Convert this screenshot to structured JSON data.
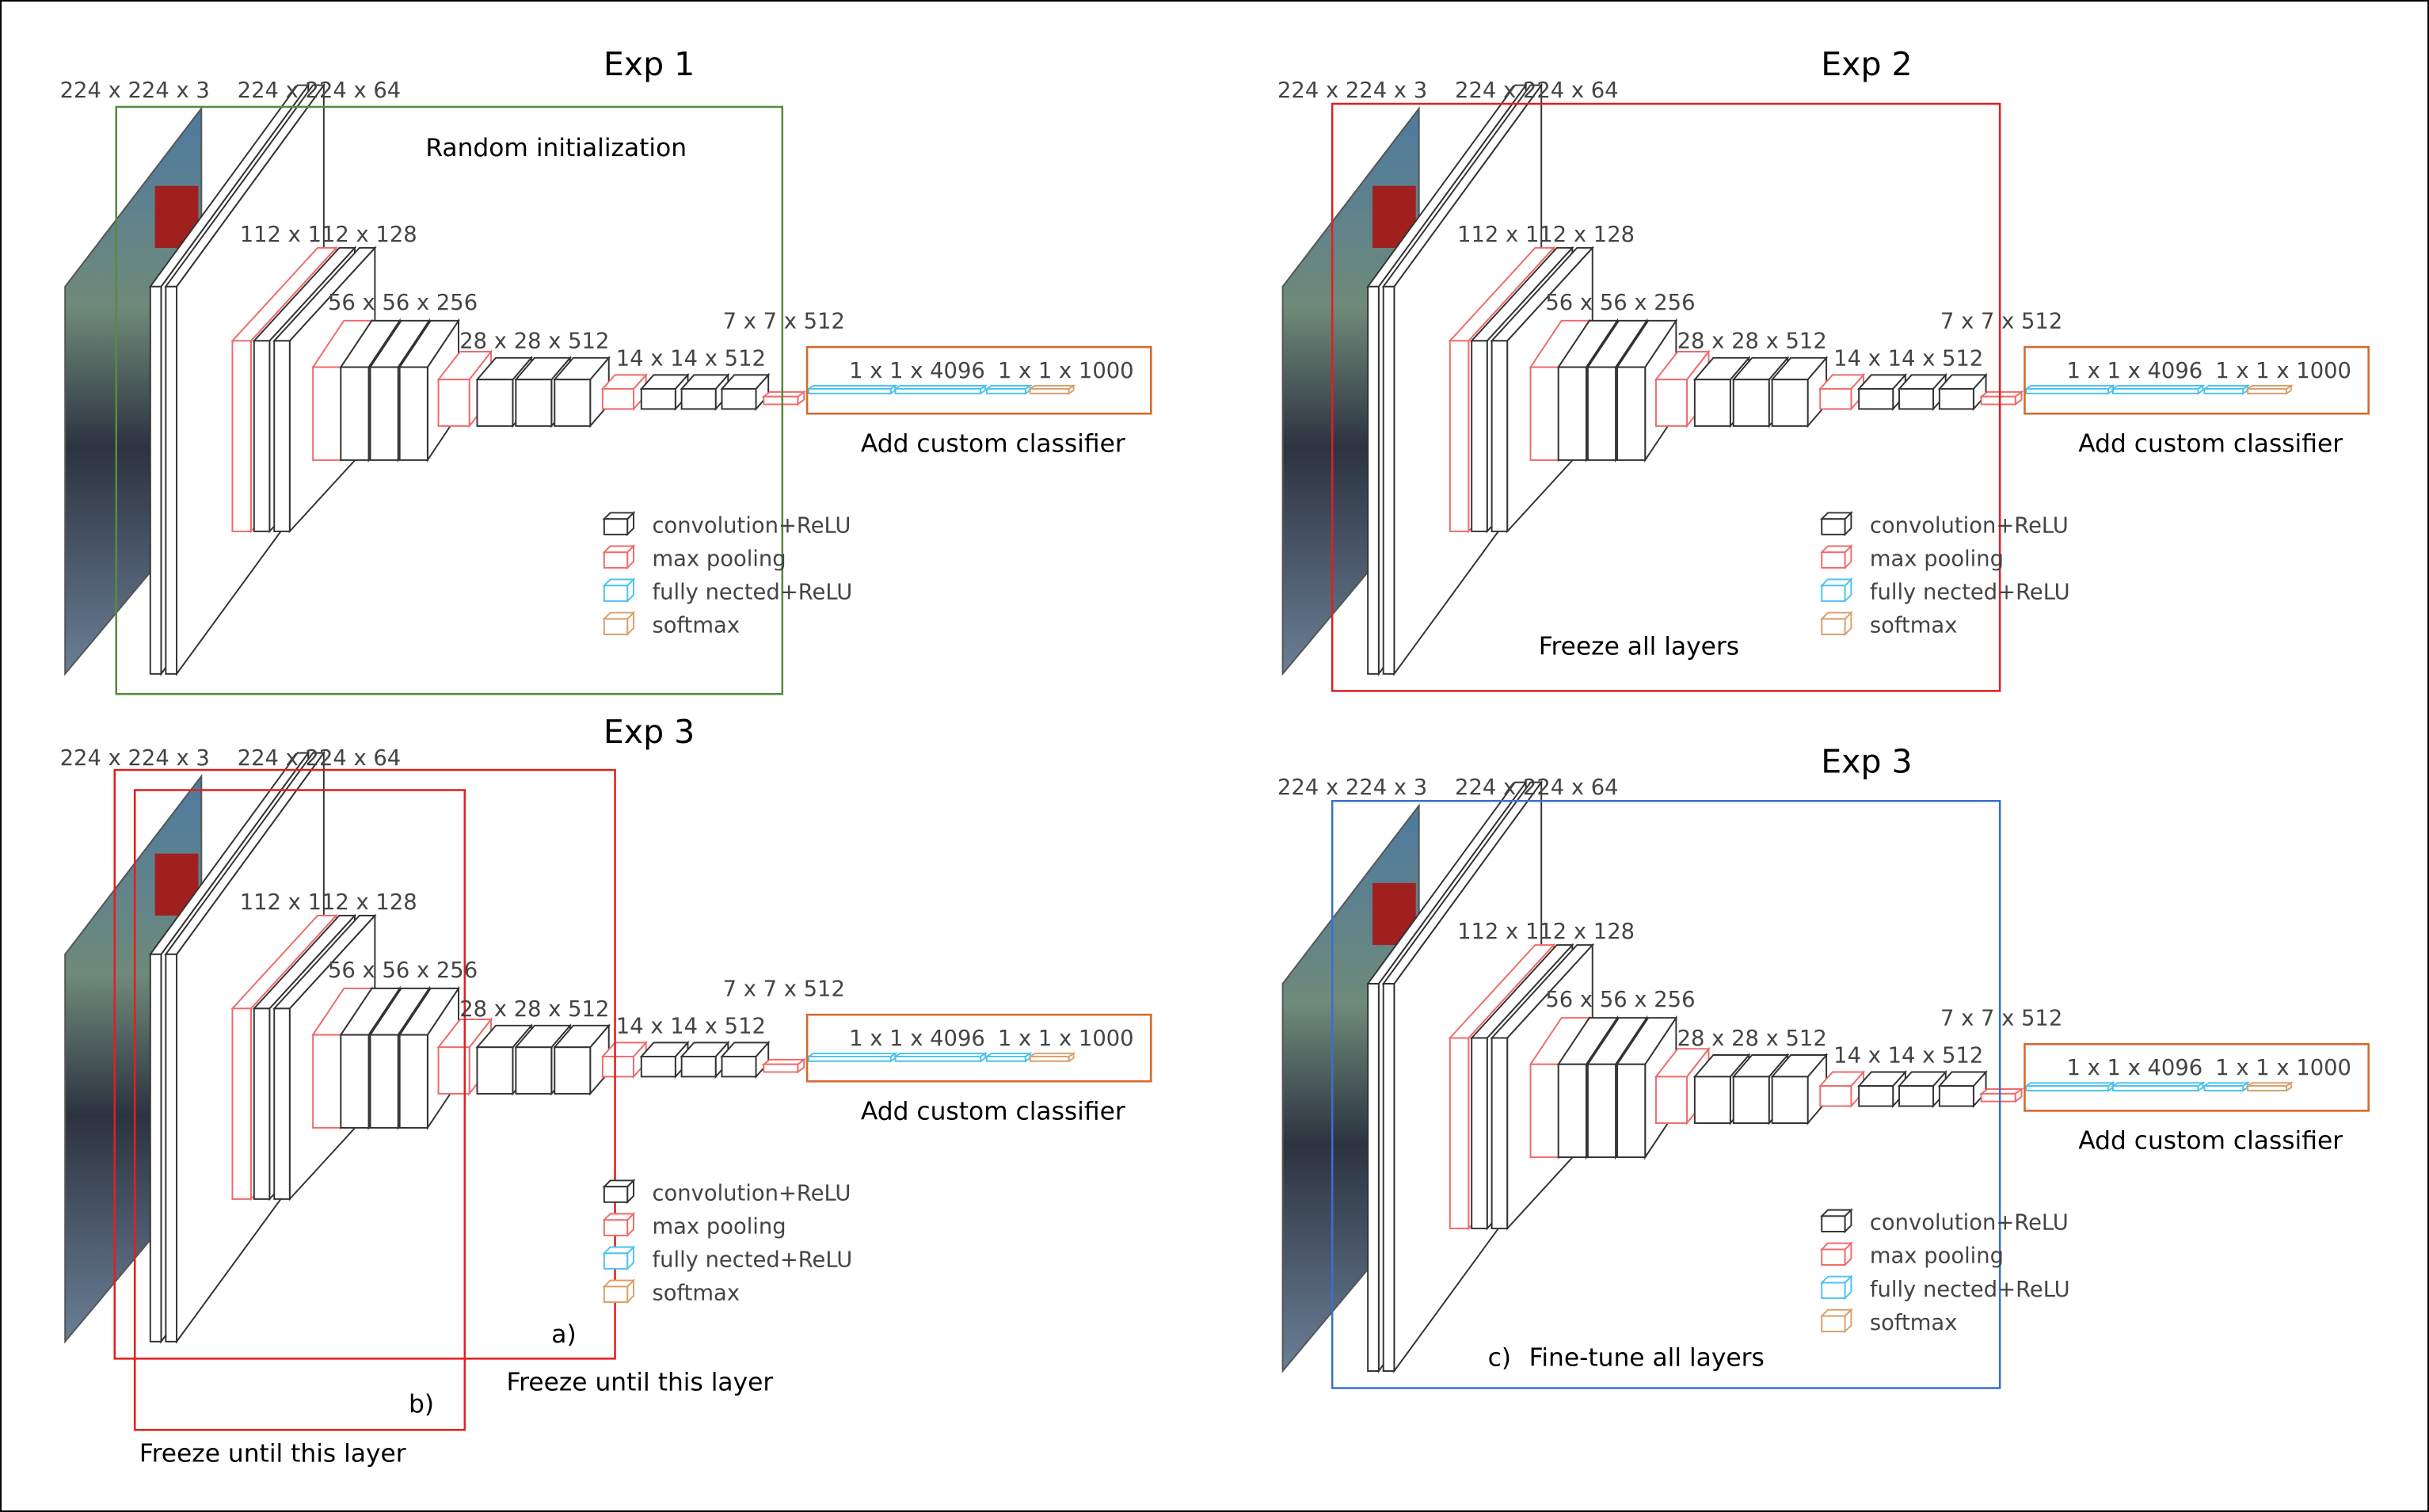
{
  "panels": [
    {
      "title": "Exp 1",
      "dims": [
        "224 x 224 x 3",
        "224 x 224 x 64",
        "112 x 112 x 128",
        "56 x 56 x 256",
        "28 x 28 x 512",
        "14 x 14 x 512",
        "7 x 7 x 512"
      ],
      "classifier": [
        "1 x 1 x 4096",
        "1 x 1 x 1000"
      ],
      "classifier_note": "Add custom classifier",
      "annotations": [
        "Random initialization"
      ]
    },
    {
      "title": "Exp 2",
      "dims": [
        "224 x 224 x 3",
        "224 x 224 x 64",
        "112 x 112 x 128",
        "56 x 56 x 256",
        "28 x 28 x 512",
        "14 x 14 x 512",
        "7 x 7 x 512"
      ],
      "classifier": [
        "1 x 1 x 4096",
        "1 x 1 x 1000"
      ],
      "classifier_note": "Add custom classifier",
      "annotations": [
        "Freeze all layers"
      ]
    },
    {
      "title": "Exp 3",
      "dims": [
        "224 x 224 x 3",
        "224 x 224 x 64",
        "112 x 112 x 128",
        "56 x 56 x 256",
        "28 x 28 x 512",
        "14 x 14 x 512",
        "7 x 7 x 512"
      ],
      "classifier": [
        "1 x 1 x 4096",
        "1 x 1 x 1000"
      ],
      "classifier_note": "Add custom classifier",
      "annotations": [
        "a)",
        "Freeze until this layer",
        "b)",
        "Freeze until this layer"
      ]
    },
    {
      "title": "Exp 3",
      "dims": [
        "224 x 224 x 3",
        "224 x 224 x 64",
        "112 x 112 x 128",
        "56 x 56 x 256",
        "28 x 28 x 512",
        "14 x 14 x 512",
        "7 x 7 x 512"
      ],
      "classifier": [
        "1 x 1 x 4096",
        "1 x 1 x 1000"
      ],
      "classifier_note": "Add custom classifier",
      "annotations": [
        "c)",
        "Fine-tune all layers"
      ]
    }
  ],
  "legend": [
    "convolution+ReLU",
    "max pooling",
    "fully nected+ReLU",
    "softmax"
  ]
}
